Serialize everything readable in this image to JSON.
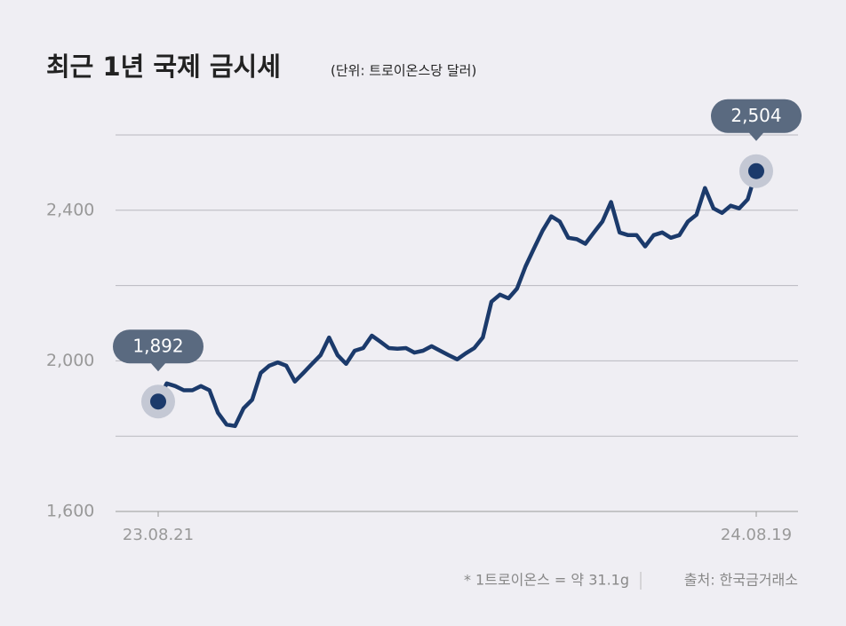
{
  "chart_data": {
    "type": "line",
    "title": "최근 1년 국제 금시세",
    "subtitle": "(단위: 트로이온스당 달러)",
    "footnote": "* 1트로이온스 = 약 31.1g",
    "source": "출처: 한국금거래소",
    "categories": [
      "23.08.21",
      null,
      null,
      null,
      null,
      null,
      null,
      null,
      null,
      null,
      null,
      null,
      null,
      null,
      null,
      null,
      null,
      null,
      null,
      null,
      null,
      null,
      null,
      null,
      null,
      null,
      null,
      null,
      null,
      null,
      null,
      null,
      null,
      null,
      null,
      null,
      null,
      null,
      null,
      null,
      null,
      null,
      null,
      null,
      null,
      null,
      null,
      null,
      null,
      null,
      null,
      null,
      null,
      null,
      null,
      null,
      null,
      null,
      null,
      null,
      null,
      null,
      null,
      null,
      null,
      null,
      null,
      null,
      null,
      null,
      "24.08.19"
    ],
    "series": [
      {
        "name": "국제 금시세",
        "color": "#1b3a6b",
        "values": [
          1892,
          1940,
          1933,
          1922,
          1922,
          1933,
          1922,
          1862,
          1831,
          1827,
          1874,
          1897,
          1968,
          1987,
          1996,
          1987,
          1945,
          1968,
          1992,
          2015,
          2062,
          2015,
          1992,
          2027,
          2034,
          2067,
          2051,
          2034,
          2032,
          2034,
          2022,
          2027,
          2039,
          2027,
          2015,
          2004,
          2020,
          2034,
          2062,
          2157,
          2176,
          2166,
          2192,
          2251,
          2299,
          2346,
          2384,
          2370,
          2327,
          2323,
          2311,
          2341,
          2370,
          2422,
          2341,
          2334,
          2334,
          2304,
          2334,
          2341,
          2327,
          2334,
          2370,
          2388,
          2459,
          2405,
          2393,
          2412,
          2405,
          2429,
          2504
        ],
        "value_labels": [
          "1,892",
          null,
          null,
          null,
          null,
          null,
          null,
          null,
          null,
          null,
          null,
          null,
          null,
          null,
          null,
          null,
          null,
          null,
          null,
          null,
          null,
          null,
          null,
          null,
          null,
          null,
          null,
          null,
          null,
          null,
          null,
          null,
          null,
          null,
          null,
          null,
          null,
          null,
          null,
          null,
          null,
          null,
          null,
          null,
          null,
          null,
          null,
          null,
          null,
          null,
          null,
          null,
          null,
          null,
          null,
          null,
          null,
          null,
          null,
          null,
          null,
          null,
          null,
          null,
          null,
          null,
          null,
          null,
          null,
          null,
          "2,504"
        ]
      }
    ],
    "ylim": [
      1600,
      2600
    ],
    "yticks": [
      {
        "value": 1600,
        "label": "1,600"
      },
      {
        "value": 2000,
        "label": "2,000"
      },
      {
        "value": 2400,
        "label": "2,400"
      }
    ],
    "grid_lines": [
      1800,
      2200,
      2600
    ],
    "grid": true
  }
}
